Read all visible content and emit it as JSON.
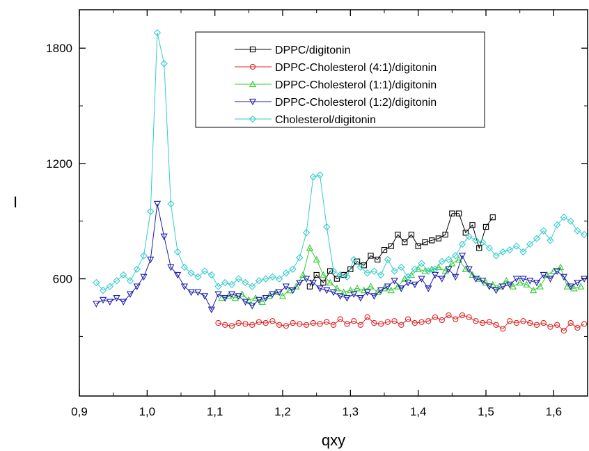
{
  "chart_data": {
    "type": "line",
    "title": "",
    "xlabel": "qxy",
    "ylabel": "I",
    "xlim": [
      0.9,
      1.65
    ],
    "ylim": [
      -10,
      2000
    ],
    "xticks": [
      0.9,
      1.0,
      1.1,
      1.2,
      1.3,
      1.4,
      1.5,
      1.6
    ],
    "xtick_labels": [
      "0,9",
      "1,0",
      "1,1",
      "1,2",
      "1,3",
      "1,4",
      "1,5",
      "1,6"
    ],
    "yticks": [
      600,
      1200,
      1800
    ],
    "ytick_labels": [
      "600",
      "1200",
      "1800"
    ],
    "grid": false,
    "legend": "top-center",
    "series": [
      {
        "name": "DPPC/digitonin",
        "color": "#000000",
        "marker": "square",
        "x": [
          1.24,
          1.25,
          1.26,
          1.27,
          1.28,
          1.29,
          1.3,
          1.31,
          1.32,
          1.33,
          1.34,
          1.35,
          1.36,
          1.37,
          1.38,
          1.39,
          1.4,
          1.41,
          1.42,
          1.43,
          1.44,
          1.45,
          1.46,
          1.47,
          1.48,
          1.49,
          1.5,
          1.51
        ],
        "y": [
          560,
          620,
          580,
          640,
          600,
          620,
          650,
          690,
          670,
          720,
          700,
          750,
          770,
          830,
          790,
          830,
          770,
          790,
          800,
          810,
          830,
          940,
          940,
          840,
          880,
          760,
          870,
          920
        ]
      },
      {
        "name": "DPPC-Cholesterol (4:1)/digitonin",
        "color": "#e02020",
        "marker": "circle",
        "x": [
          1.105,
          1.115,
          1.125,
          1.135,
          1.145,
          1.155,
          1.165,
          1.175,
          1.185,
          1.195,
          1.205,
          1.215,
          1.225,
          1.235,
          1.245,
          1.255,
          1.265,
          1.275,
          1.285,
          1.295,
          1.305,
          1.315,
          1.325,
          1.335,
          1.345,
          1.355,
          1.365,
          1.375,
          1.385,
          1.395,
          1.405,
          1.415,
          1.425,
          1.435,
          1.445,
          1.455,
          1.465,
          1.475,
          1.485,
          1.495,
          1.505,
          1.515,
          1.525,
          1.535,
          1.545,
          1.555,
          1.565,
          1.575,
          1.585,
          1.595,
          1.605,
          1.615,
          1.625,
          1.635,
          1.645
        ],
        "y": [
          370,
          360,
          355,
          370,
          365,
          360,
          375,
          370,
          380,
          360,
          355,
          370,
          365,
          360,
          370,
          365,
          375,
          360,
          390,
          365,
          380,
          360,
          400,
          370,
          365,
          375,
          380,
          360,
          390,
          370,
          375,
          380,
          400,
          385,
          410,
          390,
          410,
          400,
          380,
          370,
          375,
          360,
          340,
          380,
          370,
          380,
          370,
          360,
          370,
          350,
          360,
          330,
          370,
          345,
          365
        ]
      },
      {
        "name": "DPPC-Cholesterol (1:1)/digitonin",
        "color": "#33cc33",
        "marker": "triangle-up",
        "x": [
          1.11,
          1.12,
          1.13,
          1.14,
          1.15,
          1.16,
          1.17,
          1.18,
          1.19,
          1.2,
          1.21,
          1.22,
          1.23,
          1.24,
          1.25,
          1.26,
          1.27,
          1.28,
          1.29,
          1.3,
          1.31,
          1.32,
          1.33,
          1.34,
          1.35,
          1.36,
          1.37,
          1.38,
          1.39,
          1.4,
          1.41,
          1.42,
          1.43,
          1.44,
          1.45,
          1.46,
          1.47,
          1.48,
          1.49,
          1.5,
          1.51,
          1.52,
          1.53,
          1.54,
          1.55,
          1.56,
          1.57,
          1.58,
          1.59,
          1.6,
          1.61,
          1.62,
          1.63,
          1.64
        ],
        "y": [
          500,
          510,
          500,
          520,
          490,
          500,
          480,
          510,
          530,
          510,
          540,
          560,
          620,
          760,
          700,
          620,
          580,
          550,
          530,
          540,
          550,
          540,
          560,
          530,
          550,
          540,
          560,
          600,
          620,
          650,
          640,
          650,
          660,
          640,
          680,
          700,
          650,
          620,
          600,
          580,
          570,
          560,
          590,
          560,
          580,
          570,
          540,
          560,
          620,
          640,
          660,
          560,
          550,
          560
        ]
      },
      {
        "name": "DPPC-Cholesterol (1:2)/digitonin",
        "color": "#1c1cb0",
        "marker": "triangle-down",
        "x": [
          0.925,
          0.935,
          0.945,
          0.955,
          0.965,
          0.975,
          0.985,
          0.995,
          1.005,
          1.015,
          1.025,
          1.035,
          1.045,
          1.055,
          1.065,
          1.075,
          1.085,
          1.095,
          1.105,
          1.115,
          1.125,
          1.135,
          1.145,
          1.155,
          1.165,
          1.175,
          1.185,
          1.195,
          1.205,
          1.215,
          1.225,
          1.235,
          1.245,
          1.255,
          1.265,
          1.275,
          1.285,
          1.295,
          1.305,
          1.315,
          1.325,
          1.335,
          1.345,
          1.355,
          1.365,
          1.375,
          1.385,
          1.395,
          1.405,
          1.415,
          1.425,
          1.435,
          1.445,
          1.455,
          1.465,
          1.475,
          1.485,
          1.495,
          1.505,
          1.515,
          1.525,
          1.535,
          1.545,
          1.555,
          1.565,
          1.575,
          1.585,
          1.595,
          1.605,
          1.615,
          1.625,
          1.635,
          1.645
        ],
        "y": [
          470,
          490,
          480,
          500,
          480,
          520,
          560,
          610,
          700,
          990,
          820,
          660,
          620,
          560,
          530,
          530,
          510,
          440,
          520,
          500,
          520,
          510,
          480,
          460,
          490,
          500,
          520,
          530,
          560,
          540,
          580,
          600,
          580,
          550,
          540,
          530,
          510,
          500,
          520,
          500,
          530,
          510,
          540,
          560,
          590,
          550,
          580,
          570,
          600,
          550,
          620,
          600,
          650,
          610,
          720,
          650,
          600,
          590,
          560,
          540,
          560,
          570,
          600,
          600,
          590,
          580,
          620,
          600,
          640,
          610,
          560,
          580,
          600
        ]
      },
      {
        "name": "Cholesterol/digitonin",
        "color": "#33cccc",
        "marker": "diamond",
        "x": [
          0.925,
          0.935,
          0.945,
          0.955,
          0.965,
          0.975,
          0.985,
          0.995,
          1.005,
          1.015,
          1.025,
          1.035,
          1.045,
          1.055,
          1.065,
          1.075,
          1.085,
          1.095,
          1.105,
          1.115,
          1.125,
          1.135,
          1.145,
          1.155,
          1.165,
          1.175,
          1.185,
          1.195,
          1.205,
          1.215,
          1.225,
          1.235,
          1.245,
          1.255,
          1.265,
          1.275,
          1.285,
          1.295,
          1.305,
          1.315,
          1.325,
          1.335,
          1.345,
          1.355,
          1.365,
          1.375,
          1.385,
          1.395,
          1.405,
          1.415,
          1.425,
          1.435,
          1.445,
          1.455,
          1.465,
          1.475,
          1.485,
          1.495,
          1.505,
          1.515,
          1.525,
          1.535,
          1.545,
          1.555,
          1.565,
          1.575,
          1.585,
          1.595,
          1.605,
          1.615,
          1.625,
          1.635,
          1.645
        ],
        "y": [
          580,
          540,
          560,
          590,
          620,
          590,
          650,
          720,
          950,
          1880,
          1720,
          990,
          740,
          660,
          630,
          610,
          640,
          620,
          560,
          580,
          570,
          600,
          580,
          560,
          590,
          600,
          610,
          600,
          630,
          650,
          710,
          840,
          1130,
          1140,
          870,
          640,
          620,
          610,
          700,
          660,
          630,
          640,
          620,
          700,
          640,
          660,
          610,
          650,
          680,
          640,
          650,
          690,
          700,
          720,
          780,
          820,
          800,
          790,
          760,
          720,
          740,
          750,
          770,
          740,
          780,
          810,
          850,
          800,
          880,
          920,
          900,
          850,
          830
        ]
      }
    ]
  }
}
